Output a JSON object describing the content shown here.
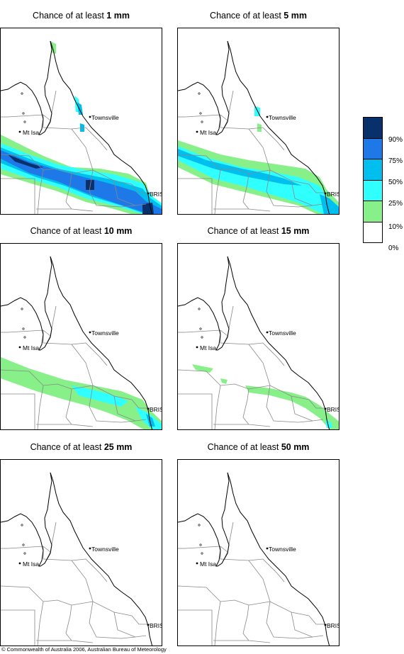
{
  "title_prefix": "Chance of at least",
  "panels": [
    {
      "threshold": "1 mm"
    },
    {
      "threshold": "5 mm"
    },
    {
      "threshold": "10 mm"
    },
    {
      "threshold": "15 mm"
    },
    {
      "threshold": "25 mm"
    },
    {
      "threshold": "50 mm"
    }
  ],
  "places": {
    "townsville": "Townsville",
    "mt_isa": "Mt Isa",
    "brisbane": "BRIS"
  },
  "legend": {
    "labels": [
      "90%",
      "75%",
      "50%",
      "25%",
      "10%",
      "0%"
    ],
    "colors": [
      "#08306b",
      "#1f78e8",
      "#00bfee",
      "#30ffff",
      "#88f088",
      "#ffffff"
    ]
  },
  "footer": "© Commonwealth of Australia 2006, Australian Bureau of Meteorology"
}
